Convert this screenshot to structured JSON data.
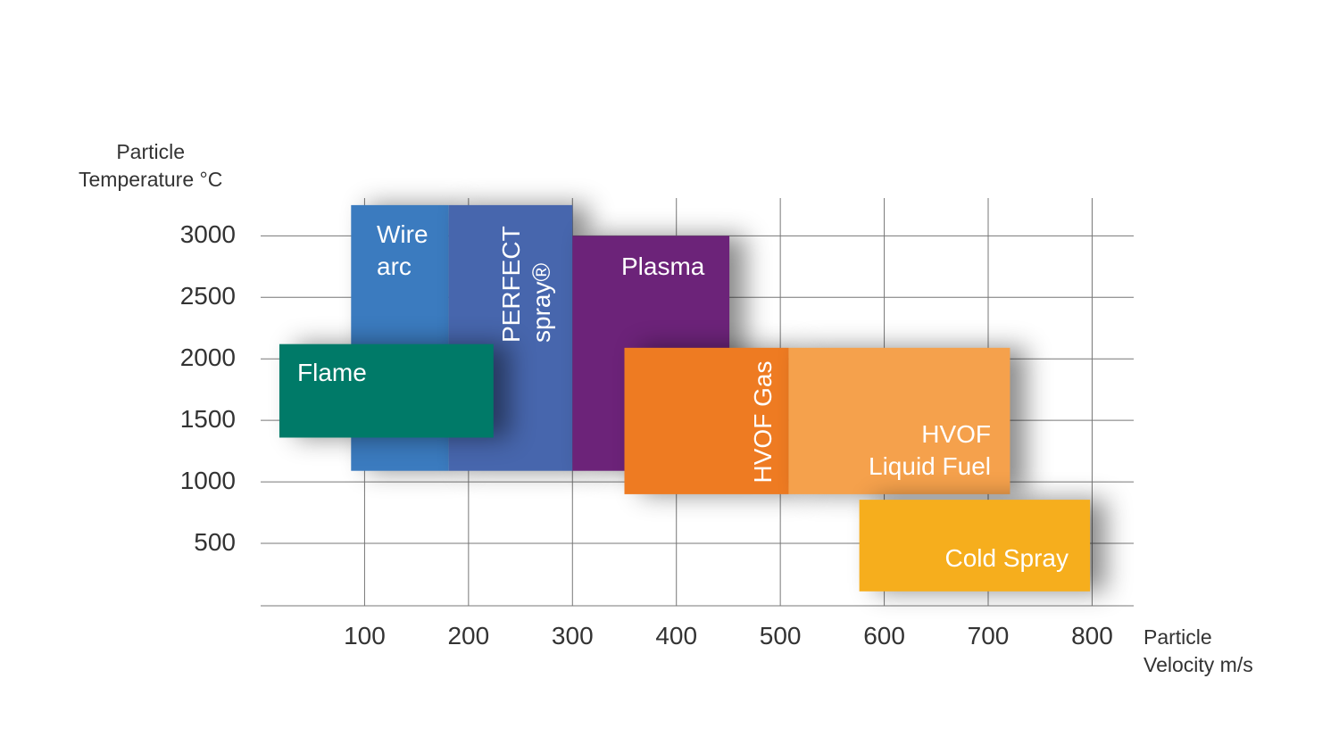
{
  "chart_data": {
    "type": "range",
    "y_label": "Particle\nTemperature °C",
    "x_label": "Particle\nVelocity m/s",
    "xlim": [
      0,
      840
    ],
    "xticks": [
      100,
      200,
      300,
      400,
      500,
      600,
      700,
      800
    ],
    "ylim": [
      0,
      3300
    ],
    "yticks": [
      500,
      1000,
      1500,
      2000,
      2500,
      3000
    ],
    "grid": true,
    "series": [
      {
        "name": "Wire\narc",
        "color": "#3b7bbf",
        "x": [
          87,
          181
        ],
        "y": [
          1090,
          3250
        ]
      },
      {
        "name": "PERFECT\nspray®",
        "color": "#4766ad",
        "x": [
          181,
          300
        ],
        "y": [
          1090,
          3250
        ]
      },
      {
        "name": "Plasma",
        "color": "#6c2379",
        "x": [
          300,
          451
        ],
        "y": [
          1090,
          3000
        ]
      },
      {
        "name": "HVOF Gas",
        "color": "#ee7b22",
        "x": [
          350,
          508
        ],
        "y": [
          900,
          2090
        ]
      },
      {
        "name": "HVOF\nLiquid Fuel",
        "color": "#f5a14c",
        "x": [
          508,
          721
        ],
        "y": [
          900,
          2090
        ]
      },
      {
        "name": "Flame",
        "color": "#007a68",
        "x": [
          18,
          224
        ],
        "y": [
          1360,
          2120
        ]
      },
      {
        "name": "Cold Spray",
        "color": "#f6ae1d",
        "x": [
          576,
          798
        ],
        "y": [
          110,
          855
        ]
      }
    ]
  }
}
